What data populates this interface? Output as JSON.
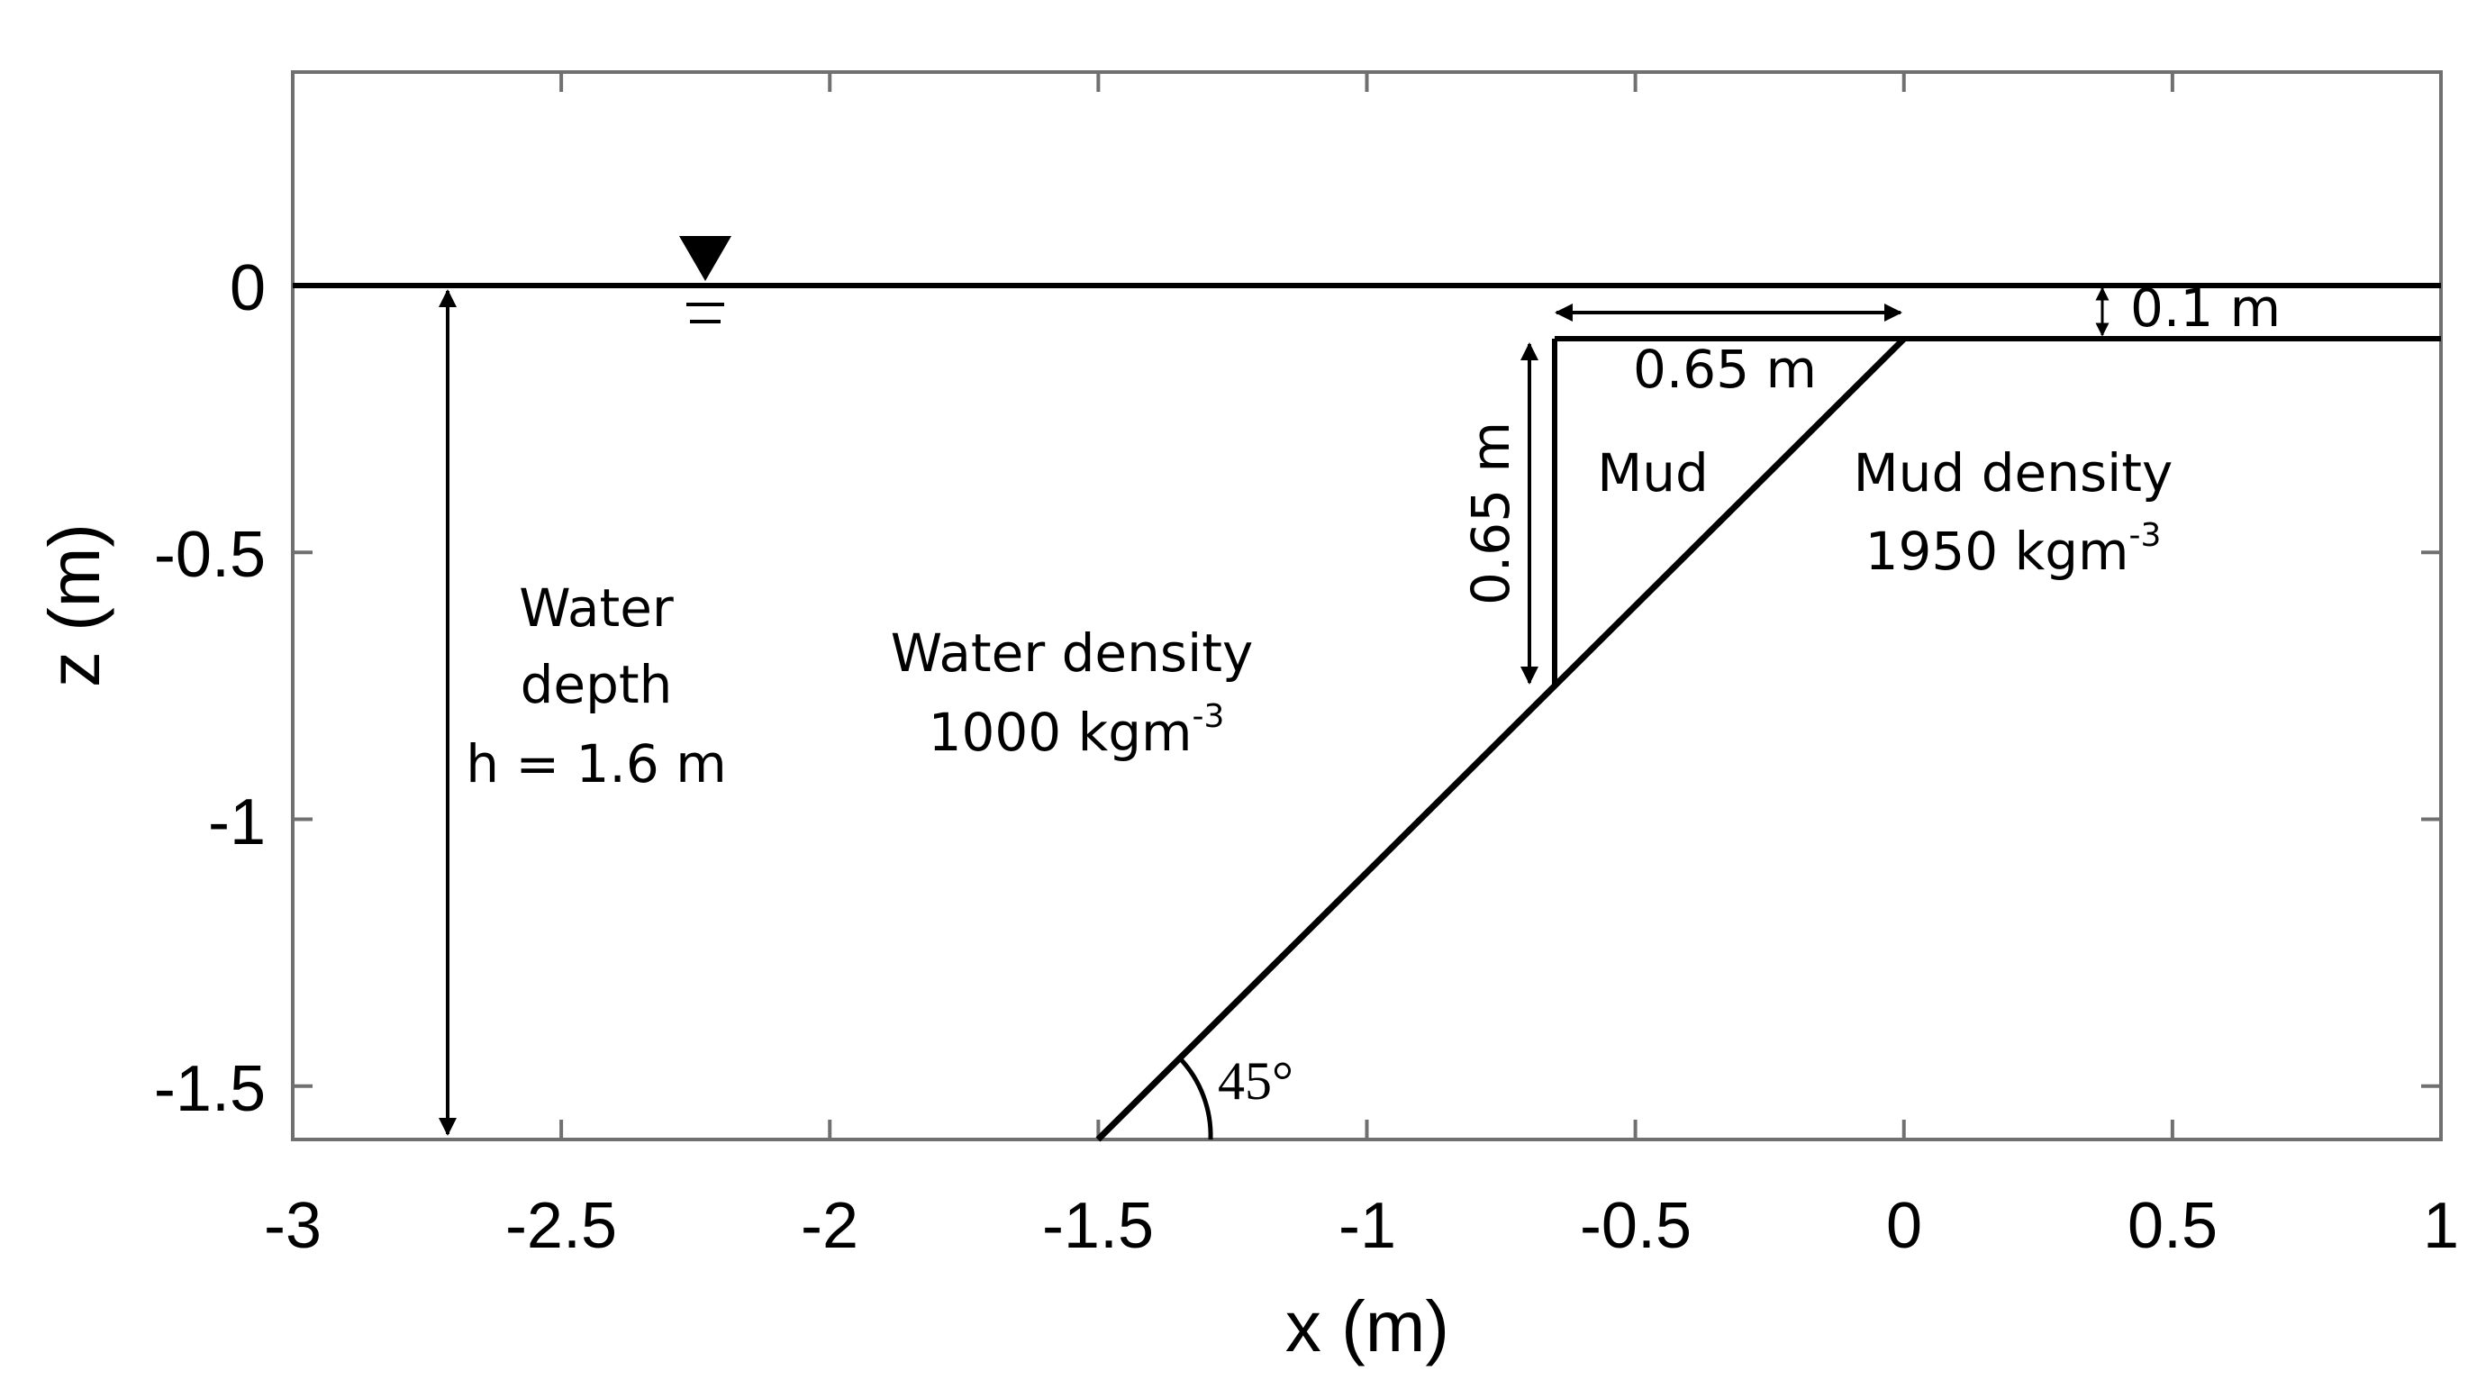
{
  "chart_data": {
    "type": "diagram",
    "xlabel": "x (m)",
    "ylabel": "z (m)",
    "xlim": [
      -3,
      1
    ],
    "ylim": [
      -1.6,
      0.4
    ],
    "x_ticks": [
      -3,
      -2.5,
      -2,
      -1.5,
      -1,
      -0.5,
      0,
      0.5,
      1
    ],
    "x_tick_labels": [
      "-3",
      "-2.5",
      "-2",
      "-1.5",
      "-1",
      "-0.5",
      "0",
      "0.5",
      "1"
    ],
    "y_ticks": [
      0,
      -0.5,
      -1,
      -1.5
    ],
    "y_tick_labels": [
      "0",
      "-0.5",
      "-1",
      "-1.5"
    ],
    "water_surface_z": 0,
    "mud_top_z": -0.1,
    "slope_line": [
      [
        -1.5,
        -1.6
      ],
      [
        0,
        -0.1
      ]
    ],
    "mud_triangle": [
      [
        -0.65,
        -0.1
      ],
      [
        0,
        -0.1
      ],
      [
        -0.65,
        -0.75
      ]
    ],
    "annotations": {
      "water_depth_line1": "Water",
      "water_depth_line2": "depth",
      "water_depth_line3": "h = 1.6 m",
      "water_density_line1": "Water density",
      "water_density_line2": "1000 kgm",
      "water_density_exp": "-3",
      "mud_label": "Mud",
      "mud_density_line1": "Mud density",
      "mud_density_line2": "1950 kgm",
      "mud_density_exp": "-3",
      "mud_width": "0.65 m",
      "mud_height": "0.65 m",
      "mud_top_depth": "0.1 m",
      "angle": "45°"
    }
  }
}
